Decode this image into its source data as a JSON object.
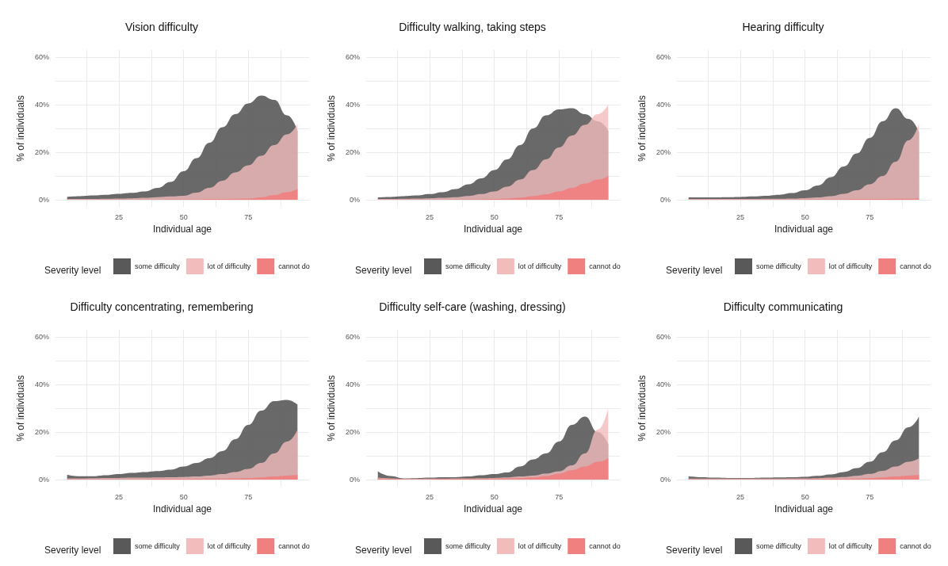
{
  "chart_data": [
    {
      "type": "area",
      "title": "Vision difficulty",
      "xlabel": "Individual age",
      "ylabel": "% of individuals",
      "legend_title": "Severity level",
      "legend": "bottom",
      "grid": true,
      "x": [
        5,
        10,
        15,
        20,
        25,
        30,
        35,
        40,
        45,
        50,
        55,
        60,
        65,
        70,
        75,
        80,
        85,
        90,
        94
      ],
      "xlim": [
        0.5,
        98.5
      ],
      "xticks": [
        {
          "value": 12.5,
          "label": null
        },
        25,
        {
          "value": 37.5,
          "label": null
        },
        50,
        {
          "value": 62.5,
          "label": null
        },
        75,
        {
          "value": 87.5,
          "label": null
        }
      ],
      "ylim": [
        -3,
        63
      ],
      "yticks": [
        {
          "value": 0,
          "label": "0%"
        },
        {
          "value": 10,
          "label": null
        },
        {
          "value": 20,
          "label": "20%"
        },
        {
          "value": 30,
          "label": null
        },
        {
          "value": 40,
          "label": "40%"
        },
        {
          "value": 50,
          "label": null
        },
        {
          "value": 60,
          "label": "60%"
        }
      ],
      "series": [
        {
          "name": "some difficulty",
          "color": "#595959",
          "values": [
            1.2,
            1.5,
            1.8,
            2.1,
            2.5,
            2.9,
            3.5,
            5,
            7.5,
            12,
            17.5,
            24,
            30.5,
            36,
            40.5,
            43.8,
            42,
            35.5,
            29
          ]
        },
        {
          "name": "lot of difficulty",
          "color": "#f2bcbc",
          "values": [
            0.3,
            0.3,
            0.3,
            0.4,
            0.5,
            0.6,
            0.8,
            1.1,
            1.4,
            1.7,
            3,
            5,
            8,
            11.5,
            14.5,
            18.5,
            23,
            27.5,
            32
          ]
        },
        {
          "name": "cannot do",
          "color": "#f08080",
          "values": [
            0.1,
            0.1,
            0.1,
            0.1,
            0.1,
            0.1,
            0.1,
            0.1,
            0.2,
            0.2,
            0.2,
            0.3,
            0.3,
            0.4,
            0.5,
            1,
            2,
            3.2,
            4.7
          ]
        }
      ]
    },
    {
      "type": "area",
      "title": "Difficulty walking, taking steps",
      "xlabel": "Individual age",
      "ylabel": "% of individuals",
      "legend_title": "Severity level",
      "legend": "bottom",
      "grid": true,
      "x": [
        5,
        10,
        15,
        20,
        25,
        30,
        35,
        40,
        45,
        50,
        55,
        60,
        65,
        70,
        75,
        80,
        85,
        90,
        94
      ],
      "xlim": [
        0.5,
        98.5
      ],
      "xticks": [
        {
          "value": 12.5,
          "label": null
        },
        25,
        {
          "value": 37.5,
          "label": null
        },
        50,
        {
          "value": 62.5,
          "label": null
        },
        75,
        {
          "value": 87.5,
          "label": null
        }
      ],
      "ylim": [
        -3,
        63
      ],
      "yticks": [
        {
          "value": 0,
          "label": "0%"
        },
        {
          "value": 10,
          "label": null
        },
        {
          "value": 20,
          "label": "20%"
        },
        {
          "value": 30,
          "label": null
        },
        {
          "value": 40,
          "label": "40%"
        },
        {
          "value": 50,
          "label": null
        },
        {
          "value": 60,
          "label": "60%"
        }
      ],
      "series": [
        {
          "name": "some difficulty",
          "color": "#595959",
          "values": [
            1,
            1.2,
            1.5,
            1.8,
            2.4,
            3.2,
            4.5,
            6.5,
            9,
            12.5,
            17,
            23,
            30,
            35.5,
            38,
            38.5,
            36,
            33,
            29
          ]
        },
        {
          "name": "lot of difficulty",
          "color": "#f2bcbc",
          "values": [
            0.3,
            0.3,
            0.4,
            0.5,
            0.6,
            0.8,
            1.1,
            1.6,
            2.4,
            3.5,
            5.5,
            8.5,
            12.5,
            17,
            22,
            27,
            31.5,
            36,
            40
          ]
        },
        {
          "name": "cannot do",
          "color": "#f08080",
          "values": [
            0.1,
            0.1,
            0.1,
            0.1,
            0.1,
            0.1,
            0.2,
            0.2,
            0.2,
            0.3,
            0.5,
            0.9,
            1.5,
            2.3,
            3.5,
            5,
            6.8,
            8.5,
            10
          ]
        }
      ]
    },
    {
      "type": "area",
      "title": "Hearing difficulty",
      "xlabel": "Individual age",
      "ylabel": "% of individuals",
      "legend_title": "Severity level",
      "legend": "bottom",
      "grid": true,
      "x": [
        5,
        10,
        15,
        20,
        25,
        30,
        35,
        40,
        45,
        50,
        55,
        60,
        65,
        70,
        75,
        80,
        85,
        90,
        94
      ],
      "xlim": [
        0.5,
        98.5
      ],
      "xticks": [
        {
          "value": 12.5,
          "label": null
        },
        25,
        {
          "value": 37.5,
          "label": null
        },
        50,
        {
          "value": 62.5,
          "label": null
        },
        75,
        {
          "value": 87.5,
          "label": null
        }
      ],
      "ylim": [
        -3,
        63
      ],
      "yticks": [
        {
          "value": 0,
          "label": "0%"
        },
        {
          "value": 10,
          "label": null
        },
        {
          "value": 20,
          "label": "20%"
        },
        {
          "value": 30,
          "label": null
        },
        {
          "value": 40,
          "label": "40%"
        },
        {
          "value": 50,
          "label": null
        },
        {
          "value": 60,
          "label": "60%"
        }
      ],
      "series": [
        {
          "name": "some difficulty",
          "color": "#595959",
          "values": [
            1,
            1,
            1,
            1.1,
            1.2,
            1.4,
            1.7,
            2.1,
            2.8,
            4,
            6,
            9.5,
            14,
            19.5,
            26,
            33,
            38.5,
            34,
            28.5
          ]
        },
        {
          "name": "lot of difficulty",
          "color": "#f2bcbc",
          "values": [
            0.3,
            0.3,
            0.3,
            0.3,
            0.3,
            0.3,
            0.4,
            0.4,
            0.5,
            0.7,
            1,
            1.5,
            2.5,
            4,
            6.5,
            10,
            16,
            25,
            32
          ]
        },
        {
          "name": "cannot do",
          "color": "#f08080",
          "values": [
            0.1,
            0.1,
            0.1,
            0.1,
            0.1,
            0.1,
            0.1,
            0.1,
            0.1,
            0.2,
            0.2,
            0.2,
            0.2,
            0.3,
            0.3,
            0.3,
            0.4,
            0.4,
            0.5
          ]
        }
      ]
    },
    {
      "type": "area",
      "title": "Difficulty concentrating, remembering",
      "xlabel": "Individual age",
      "ylabel": "% of individuals",
      "legend_title": "Severity level",
      "legend": "bottom",
      "grid": true,
      "x": [
        5,
        10,
        15,
        20,
        25,
        30,
        35,
        40,
        45,
        50,
        55,
        60,
        65,
        70,
        75,
        80,
        85,
        90,
        94
      ],
      "xlim": [
        0.5,
        98.5
      ],
      "xticks": [
        {
          "value": 12.5,
          "label": null
        },
        25,
        {
          "value": 37.5,
          "label": null
        },
        50,
        {
          "value": 62.5,
          "label": null
        },
        75,
        {
          "value": 87.5,
          "label": null
        }
      ],
      "ylim": [
        -3,
        63
      ],
      "yticks": [
        {
          "value": 0,
          "label": "0%"
        },
        {
          "value": 10,
          "label": null
        },
        {
          "value": 20,
          "label": "20%"
        },
        {
          "value": 30,
          "label": null
        },
        {
          "value": 40,
          "label": "40%"
        },
        {
          "value": 50,
          "label": null
        },
        {
          "value": 60,
          "label": "60%"
        }
      ],
      "series": [
        {
          "name": "some difficulty",
          "color": "#595959",
          "values": [
            2,
            1.4,
            1.4,
            1.8,
            2.3,
            2.8,
            3.2,
            3.6,
            4.2,
            5.5,
            7,
            9,
            12,
            17,
            23,
            29,
            33,
            33.5,
            31.5
          ]
        },
        {
          "name": "lot of difficulty",
          "color": "#f2bcbc",
          "values": [
            0.5,
            0.5,
            0.6,
            0.7,
            0.7,
            0.8,
            0.8,
            0.9,
            1,
            1.1,
            1.3,
            1.7,
            2.3,
            3.2,
            4.5,
            7,
            11,
            16,
            21
          ]
        },
        {
          "name": "cannot do",
          "color": "#f08080",
          "values": [
            0.2,
            0.2,
            0.2,
            0.2,
            0.2,
            0.2,
            0.2,
            0.3,
            0.3,
            0.3,
            0.3,
            0.4,
            0.4,
            0.5,
            0.6,
            0.9,
            1.3,
            1.7,
            2
          ]
        }
      ]
    },
    {
      "type": "area",
      "title": "Difficulty self-care (washing, dressing)",
      "xlabel": "Individual age",
      "ylabel": "% of individuals",
      "legend_title": "Severity level",
      "legend": "bottom",
      "grid": true,
      "x": [
        5,
        10,
        15,
        20,
        25,
        30,
        35,
        40,
        45,
        50,
        55,
        60,
        65,
        70,
        75,
        80,
        85,
        90,
        94
      ],
      "xlim": [
        0.5,
        98.5
      ],
      "xticks": [
        {
          "value": 12.5,
          "label": null
        },
        25,
        {
          "value": 37.5,
          "label": null
        },
        50,
        {
          "value": 62.5,
          "label": null
        },
        75,
        {
          "value": 87.5,
          "label": null
        }
      ],
      "ylim": [
        -3,
        63
      ],
      "yticks": [
        {
          "value": 0,
          "label": "0%"
        },
        {
          "value": 10,
          "label": null
        },
        {
          "value": 20,
          "label": "20%"
        },
        {
          "value": 30,
          "label": null
        },
        {
          "value": 40,
          "label": "40%"
        },
        {
          "value": 50,
          "label": null
        },
        {
          "value": 60,
          "label": "60%"
        }
      ],
      "series": [
        {
          "name": "some difficulty",
          "color": "#595959",
          "values": [
            3.5,
            1.5,
            0.5,
            0.6,
            0.8,
            1,
            1,
            1.3,
            1.8,
            2.3,
            3,
            5.5,
            8.5,
            11,
            16,
            23,
            26.5,
            20,
            15
          ]
        },
        {
          "name": "lot of difficulty",
          "color": "#f2bcbc",
          "values": [
            0.8,
            0.5,
            0.3,
            0.3,
            0.4,
            0.4,
            0.5,
            0.5,
            0.6,
            0.7,
            0.9,
            1.3,
            1.7,
            2.5,
            3.5,
            6,
            11,
            21,
            30
          ]
        },
        {
          "name": "cannot do",
          "color": "#f08080",
          "values": [
            0.5,
            0.3,
            0.2,
            0.2,
            0.2,
            0.3,
            0.3,
            0.3,
            0.3,
            0.4,
            0.5,
            0.6,
            0.9,
            1.5,
            2.5,
            4,
            5.5,
            7.5,
            9
          ]
        }
      ]
    },
    {
      "type": "area",
      "title": "Difficulty communicating",
      "xlabel": "Individual age",
      "ylabel": "% of individuals",
      "legend_title": "Severity level",
      "legend": "bottom",
      "grid": true,
      "x": [
        5,
        10,
        15,
        20,
        25,
        30,
        35,
        40,
        45,
        50,
        55,
        60,
        65,
        70,
        75,
        80,
        85,
        90,
        94
      ],
      "xlim": [
        0.5,
        98.5
      ],
      "xticks": [
        {
          "value": 12.5,
          "label": null
        },
        25,
        {
          "value": 37.5,
          "label": null
        },
        50,
        {
          "value": 62.5,
          "label": null
        },
        75,
        {
          "value": 87.5,
          "label": null
        }
      ],
      "ylim": [
        -3,
        63
      ],
      "yticks": [
        {
          "value": 0,
          "label": "0%"
        },
        {
          "value": 10,
          "label": null
        },
        {
          "value": 20,
          "label": "20%"
        },
        {
          "value": 30,
          "label": null
        },
        {
          "value": 40,
          "label": "40%"
        },
        {
          "value": 50,
          "label": null
        },
        {
          "value": 60,
          "label": "60%"
        }
      ],
      "series": [
        {
          "name": "some difficulty",
          "color": "#595959",
          "values": [
            1.4,
            1,
            0.8,
            0.7,
            0.7,
            0.7,
            0.8,
            0.9,
            1,
            1.2,
            1.6,
            2.2,
            3.2,
            4.8,
            7.5,
            11.5,
            16.5,
            22,
            26.5
          ]
        },
        {
          "name": "lot of difficulty",
          "color": "#f2bcbc",
          "values": [
            0.4,
            0.4,
            0.4,
            0.4,
            0.4,
            0.4,
            0.4,
            0.4,
            0.5,
            0.5,
            0.6,
            0.8,
            1.1,
            1.6,
            2.4,
            3.7,
            5.5,
            7.5,
            9
          ]
        },
        {
          "name": "cannot do",
          "color": "#f08080",
          "values": [
            0.2,
            0.2,
            0.2,
            0.2,
            0.2,
            0.2,
            0.2,
            0.2,
            0.2,
            0.2,
            0.3,
            0.3,
            0.3,
            0.4,
            0.6,
            0.9,
            1.3,
            1.7,
            2
          ]
        }
      ]
    }
  ]
}
